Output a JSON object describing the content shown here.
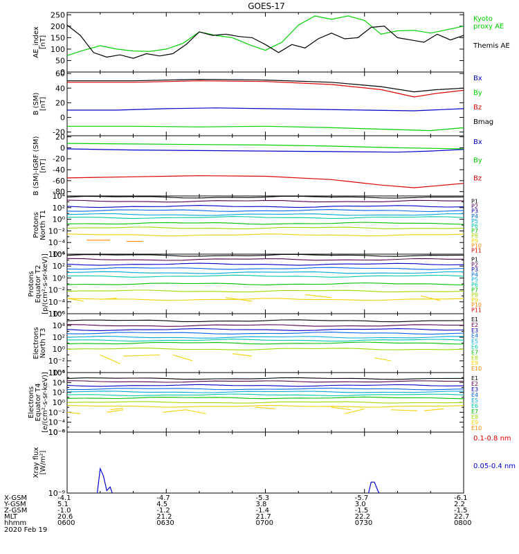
{
  "title": "GOES-17",
  "colors": {
    "black": "#000000",
    "green": "#00d000",
    "blue": "#0000cc",
    "red": "#dd0000",
    "chan": [
      "#000000",
      "#5a0050",
      "#0000c8",
      "#0066ee",
      "#00a8d8",
      "#00c8a8",
      "#00c000",
      "#9fd800",
      "#f2d200",
      "#ff8800",
      "#e00000"
    ]
  },
  "chart_data": [
    {
      "type": "line",
      "id": "ae",
      "ylabel": [
        "AE_index",
        "[nT]"
      ],
      "yticks": [
        0,
        50,
        100,
        150,
        200,
        250
      ],
      "ylim": [
        0,
        260
      ],
      "series": [
        {
          "name": "Kyoto proxy AE",
          "color": "green",
          "x": [
            0,
            5,
            10,
            15,
            20,
            25,
            30,
            35,
            40,
            45,
            50,
            55,
            60,
            65,
            70,
            75,
            80,
            85,
            90,
            95,
            100,
            105,
            110,
            115,
            120
          ],
          "y": [
            72,
            95,
            115,
            100,
            92,
            90,
            100,
            125,
            175,
            160,
            150,
            120,
            95,
            130,
            205,
            245,
            230,
            245,
            225,
            165,
            180,
            182,
            170,
            185,
            200
          ]
        },
        {
          "name": "Themis AE",
          "color": "black",
          "x": [
            0,
            4,
            8,
            12,
            16,
            20,
            24,
            28,
            32,
            36,
            40,
            44,
            48,
            52,
            56,
            60,
            64,
            68,
            72,
            76,
            80,
            84,
            88,
            92,
            96,
            100,
            104,
            108,
            112,
            116,
            120
          ],
          "y": [
            205,
            160,
            85,
            65,
            75,
            60,
            80,
            70,
            80,
            120,
            175,
            160,
            165,
            155,
            150,
            120,
            85,
            120,
            105,
            145,
            170,
            145,
            150,
            195,
            200,
            150,
            140,
            130,
            165,
            140,
            160
          ]
        }
      ],
      "legend": [
        {
          "lines": [
            "Kyoto",
            "proxy AE"
          ],
          "color": "green"
        },
        {
          "lines": [
            "Themis AE"
          ],
          "color": "black"
        }
      ]
    },
    {
      "type": "line",
      "id": "b-sm",
      "ylabel": [
        "B (SM)",
        "[nT]"
      ],
      "yticks": [
        -20,
        0,
        20,
        40,
        60
      ],
      "ylim": [
        -25,
        62
      ],
      "series": [
        {
          "name": "Bmag",
          "color": "black",
          "x": [
            0,
            20,
            40,
            60,
            80,
            95,
            105,
            112,
            120
          ],
          "y": [
            50,
            50,
            52,
            51,
            48,
            42,
            35,
            38,
            40
          ]
        },
        {
          "name": "Bz",
          "color": "red",
          "x": [
            0,
            20,
            40,
            60,
            80,
            95,
            105,
            112,
            120
          ],
          "y": [
            48,
            48,
            50,
            49,
            45,
            38,
            28,
            33,
            37
          ]
        },
        {
          "name": "Bx",
          "color": "blue",
          "x": [
            0,
            15,
            30,
            45,
            60,
            75,
            90,
            105,
            120
          ],
          "y": [
            10,
            10,
            12,
            13,
            12,
            11,
            10,
            9,
            12
          ]
        },
        {
          "name": "By",
          "color": "green",
          "x": [
            0,
            20,
            40,
            60,
            80,
            95,
            110,
            120
          ],
          "y": [
            -12,
            -12,
            -13,
            -12,
            -14,
            -16,
            -18,
            -14
          ]
        }
      ],
      "legend": [
        {
          "lines": [
            "Bx"
          ],
          "color": "blue"
        },
        {
          "lines": [
            "By"
          ],
          "color": "green"
        },
        {
          "lines": [
            "Bz"
          ],
          "color": "red"
        },
        {
          "lines": [
            "Bmag"
          ],
          "color": "black"
        }
      ]
    },
    {
      "type": "line",
      "id": "b-igrf",
      "ylabel": [
        "B (SM)-IGRF (SM)",
        "[nT]"
      ],
      "yticks": [
        -80,
        -60,
        -40,
        -20,
        0,
        20
      ],
      "ylim": [
        -88,
        22
      ],
      "series": [
        {
          "name": "By",
          "color": "green",
          "x": [
            0,
            20,
            40,
            60,
            80,
            100,
            120
          ],
          "y": [
            8,
            7,
            6,
            5,
            3,
            0,
            -2
          ]
        },
        {
          "name": "Bx",
          "color": "blue",
          "x": [
            0,
            20,
            40,
            60,
            80,
            100,
            110,
            120
          ],
          "y": [
            -2,
            -4,
            -5,
            -6,
            -7,
            -8,
            -6,
            -3
          ]
        },
        {
          "name": "Bz",
          "color": "red",
          "x": [
            0,
            20,
            40,
            60,
            80,
            95,
            105,
            120
          ],
          "y": [
            -55,
            -53,
            -51,
            -52,
            -58,
            -68,
            -73,
            -65
          ]
        }
      ],
      "legend": [
        {
          "lines": [
            "Bx"
          ],
          "color": "blue"
        },
        {
          "lines": [
            "By"
          ],
          "color": "green"
        },
        {
          "lines": [
            "Bz"
          ],
          "color": "red"
        }
      ]
    },
    {
      "type": "line",
      "scale": "log",
      "id": "protons-t1",
      "ylabel": [
        "Protons",
        "North T1"
      ],
      "decades": [
        -6,
        4
      ],
      "tick_labels": [
        "10⁻⁶",
        "10⁻⁴",
        "10⁻²",
        "10⁰",
        "10²",
        "10⁴"
      ],
      "channels": [
        "P1",
        "P2",
        "P3",
        "P4",
        "P5",
        "P6",
        "P7",
        "P8",
        "P9",
        "P10",
        "P11"
      ],
      "levels": [
        3.8,
        3.1,
        2.2,
        1.5,
        0.8,
        0.3,
        -0.7,
        -1.5,
        -2.7,
        null,
        null
      ],
      "fragments": [
        {
          "channel": 9,
          "x": [
            6,
            13
          ],
          "y": [
            -3.6,
            -3.6
          ]
        },
        {
          "channel": 9,
          "x": [
            18,
            23
          ],
          "y": [
            -3.8,
            -3.8
          ]
        }
      ]
    },
    {
      "type": "line",
      "scale": "log",
      "id": "protons-t2",
      "ylabel": [
        "Protons",
        "Equator T2",
        "[p/(cm²-s-sr-keV)]"
      ],
      "decades": [
        -6,
        4
      ],
      "tick_labels": [
        "10⁻⁶",
        "10⁻⁴",
        "10⁻²",
        "10⁰",
        "10²",
        "10⁴"
      ],
      "channels": [
        "P1",
        "P2",
        "P3",
        "P4",
        "P5",
        "P6",
        "P7",
        "P8",
        "P9",
        "P10",
        "P11"
      ],
      "levels": [
        3.8,
        3.1,
        2.3,
        1.6,
        0.9,
        0.3,
        -1.0,
        -2.2,
        -3.6,
        null,
        null
      ],
      "fragments": [
        {
          "channel": 8,
          "x": [
            0,
            5
          ],
          "y": [
            -3.4,
            -3.9
          ]
        },
        {
          "channel": 8,
          "x": [
            10,
            15
          ],
          "y": [
            -3.6,
            -3.4
          ]
        },
        {
          "channel": 8,
          "x": [
            48,
            56
          ],
          "y": [
            -3.3,
            -3.9
          ]
        },
        {
          "channel": 8,
          "x": [
            72,
            80
          ],
          "y": [
            -2.8,
            -3.3
          ]
        },
        {
          "channel": 8,
          "x": [
            107,
            113
          ],
          "y": [
            -3.0,
            -3.8
          ]
        }
      ]
    },
    {
      "type": "line",
      "scale": "log",
      "id": "electrons-t3",
      "ylabel": [
        "Electrons",
        "North T3"
      ],
      "decades": [
        -4,
        6
      ],
      "tick_labels": [
        "10⁻⁴",
        "10⁻²",
        "10⁰",
        "10²",
        "10⁴",
        "10⁶"
      ],
      "channels": [
        "E1",
        "E2",
        "E3",
        "E4",
        "E5",
        "E6",
        "E7",
        "E8",
        "E9",
        "E10"
      ],
      "levels": [
        4.8,
        4.0,
        3.3,
        2.7,
        2.0,
        1.5,
        1.0,
        0.0,
        null,
        null
      ],
      "fragments": [
        {
          "channel": 8,
          "x": [
            10,
            16
          ],
          "y": [
            -1.0,
            -2.5
          ]
        },
        {
          "channel": 8,
          "x": [
            17,
            28
          ],
          "y": [
            -1.2,
            -1.0
          ]
        },
        {
          "channel": 8,
          "x": [
            32,
            38
          ],
          "y": [
            -1.0,
            -2.0
          ]
        },
        {
          "channel": 8,
          "x": [
            50,
            56
          ],
          "y": [
            -0.8,
            -1.2
          ]
        },
        {
          "channel": 8,
          "x": [
            93,
            98
          ],
          "y": [
            -1.5,
            -2.0
          ]
        }
      ]
    },
    {
      "type": "line",
      "scale": "log",
      "id": "electrons-t4",
      "ylabel": [
        "Electrons",
        "Equator T4",
        "[e/(cm²-s-sr-keV)]"
      ],
      "decades": [
        -6,
        6
      ],
      "tick_labels": [
        "10⁻⁶",
        "10⁻⁴",
        "10⁻²",
        "10⁰",
        "10²",
        "10⁴",
        "10⁶"
      ],
      "channels": [
        "E1",
        "E2",
        "E3",
        "E4",
        "E5",
        "E6",
        "E7",
        "E8",
        "E9",
        "E10"
      ],
      "levels": [
        4.8,
        4.2,
        3.4,
        2.7,
        2.1,
        1.5,
        0.9,
        0.0,
        -0.8,
        null
      ],
      "fragments": [
        {
          "channel": 8,
          "x": [
            0,
            4
          ],
          "y": [
            -2.0,
            -2.3
          ]
        },
        {
          "channel": 8,
          "x": [
            12,
            17
          ],
          "y": [
            -2.0,
            -1.5
          ]
        },
        {
          "channel": 8,
          "x": [
            13,
            17
          ],
          "y": [
            -1.5,
            -1.2
          ]
        },
        {
          "channel": 8,
          "x": [
            29,
            36
          ],
          "y": [
            -2.0,
            -1.5
          ]
        },
        {
          "channel": 8,
          "x": [
            36,
            42
          ],
          "y": [
            -1.5,
            -2.3
          ]
        },
        {
          "channel": 8,
          "x": [
            57,
            63
          ],
          "y": [
            -1.0,
            -1.3
          ]
        },
        {
          "channel": 8,
          "x": [
            80,
            86
          ],
          "y": [
            -1.0,
            -1.5
          ]
        },
        {
          "channel": 8,
          "x": [
            84,
            90
          ],
          "y": [
            -2.3,
            -1.3
          ]
        },
        {
          "channel": 8,
          "x": [
            98,
            106
          ],
          "y": [
            -1.5,
            -1.7
          ]
        },
        {
          "channel": 8,
          "x": [
            108,
            114
          ],
          "y": [
            -1.7,
            -1.3
          ]
        }
      ]
    },
    {
      "type": "line",
      "scale": "log",
      "id": "xray",
      "ylabel": [
        "Xray flux",
        "[W/m²]"
      ],
      "decades": [
        -9,
        -8
      ],
      "tick_labels": [
        "10⁻⁹",
        "10⁻⁸"
      ],
      "series": [
        {
          "name": "0.05-0.4 nm",
          "color": "blue",
          "x": [
            0,
            9,
            10,
            11,
            12,
            13,
            14,
            15,
            70,
            91,
            92,
            93,
            94,
            95,
            120
          ],
          "y": [
            -9.05,
            -9.05,
            -8.6,
            -8.72,
            -8.96,
            -8.9,
            -9.05,
            -9.05,
            -9.05,
            -9.05,
            -8.82,
            -8.82,
            -8.96,
            -9.05,
            -9.05
          ]
        },
        {
          "name": "0.1-0.8 nm",
          "color": "red",
          "x": [
            0,
            120
          ],
          "y": [
            -9.1,
            -9.1
          ]
        }
      ],
      "legend": [
        {
          "lines": [
            "0.1-0.8 nm"
          ],
          "color": "red"
        },
        {
          "lines": [
            "0.05-0.4 nm"
          ],
          "color": "blue"
        }
      ]
    }
  ],
  "ephemeris": {
    "labels": [
      "X-GSM",
      "Y-GSM",
      "Z-GSM",
      "MLT",
      "hhmm"
    ],
    "date": "2020 Feb 19",
    "x_minutes": [
      0,
      30,
      60,
      90,
      120
    ],
    "columns": [
      [
        "-4.1",
        "5.1",
        "-1.0",
        "20.6",
        "0600"
      ],
      [
        "-4.7",
        "4.5",
        "-1.2",
        "21.2",
        "0630"
      ],
      [
        "-5.3",
        "3.8",
        "-1.4",
        "21.7",
        "0700"
      ],
      [
        "-5.7",
        "3.0",
        "-1.5",
        "22.2",
        "0730"
      ],
      [
        "-6.1",
        "2.2",
        "-1.5",
        "22.7",
        "0800"
      ]
    ]
  }
}
